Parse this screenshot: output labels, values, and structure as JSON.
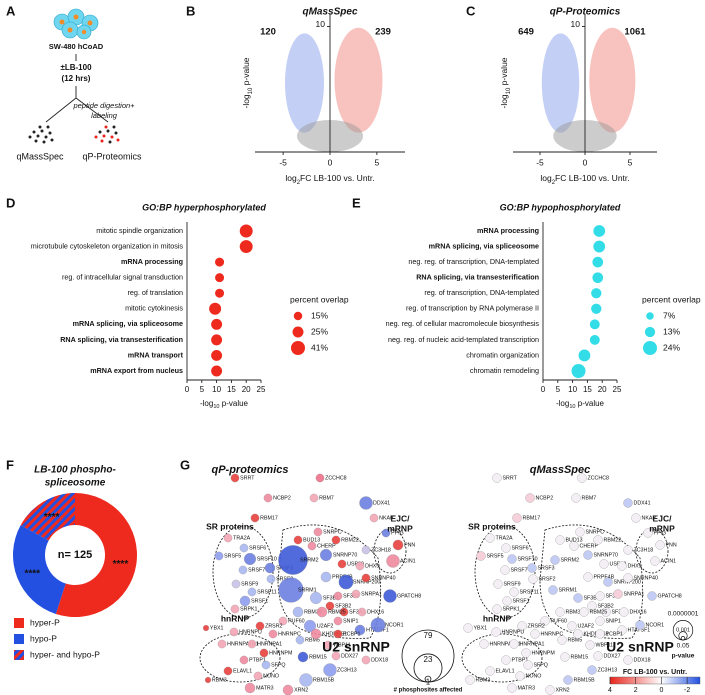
{
  "panel_labels": [
    "A",
    "B",
    "C",
    "D",
    "E",
    "F",
    "G"
  ],
  "panel_a": {
    "cells": "SW-480 hCoAD",
    "treatment": "±LB-100",
    "duration": "(12 hrs)",
    "step_1": "peptide digestion+",
    "step_2": "labeling",
    "methods": [
      "qMassSpec",
      "qP-Proteomics"
    ]
  },
  "chart_data": [
    {
      "type": "volcano",
      "title": "qMassSpec",
      "x_label": [
        "log",
        "2",
        "FC LB-100 vs. Untr."
      ],
      "y_label": [
        "-log",
        "10",
        " p-value"
      ],
      "xlim": [
        -8,
        8
      ],
      "xticks": [
        -5,
        0,
        5
      ],
      "ylim": [
        0,
        11
      ],
      "yticks": [
        10
      ],
      "left_count": 120,
      "right_count": 239,
      "left_color": "#2ad4e8",
      "right_color": "#e8241c",
      "down_color": "#7d95e8",
      "up_color": "#f07a70"
    },
    {
      "type": "volcano",
      "title": "qP-Proteomics",
      "x_label": [
        "log",
        "2",
        "FC LB-100 vs. Untr."
      ],
      "y_label": [
        "-log",
        "10",
        " p-value"
      ],
      "xlim": [
        -8,
        8
      ],
      "xticks": [
        -5,
        0,
        5
      ],
      "ylim": [
        0,
        11
      ],
      "yticks": [
        10
      ],
      "left_count": 649,
      "right_count": 1061,
      "left_color": "#2ad4e8",
      "right_color": "#e8241c",
      "down_color": "#7d95e8",
      "up_color": "#f07a70"
    },
    {
      "type": "dot",
      "title": "GO:BP hyperphosphorylated",
      "x_label": [
        "-log",
        "10",
        " p-value"
      ],
      "categories": [
        "mitotic spindle organization",
        "microtubule cytoskeleton organization in mitosis",
        "mRNA processing",
        "reg. of intracellular signal transduction",
        "reg. of translation",
        "mitotic cytokinesis",
        "mRNA splicing, via spliceosome",
        "RNA splicing, via transesterification",
        "mRNA transport",
        "mRNA export from nucleus"
      ],
      "label_colors": [
        "#000000",
        "#000000",
        "#e8241c",
        "#000000",
        "#000000",
        "#000000",
        "#e8241c",
        "#e8241c",
        "#e8241c",
        "#e8241c"
      ],
      "values": [
        20,
        20,
        11,
        11,
        11,
        9.5,
        10,
        10,
        10,
        10
      ],
      "sizes": [
        35,
        35,
        17,
        17,
        17,
        30,
        25,
        25,
        25,
        25
      ],
      "color": "#ee2a1e",
      "xlim": [
        0,
        25
      ],
      "xticks": [
        0,
        5,
        10,
        15,
        20,
        25
      ],
      "size_legend_title": "percent overlap",
      "size_legend": [
        {
          "value": 15,
          "label": "15%"
        },
        {
          "value": 25,
          "label": "25%"
        },
        {
          "value": 41,
          "label": "41%"
        }
      ]
    },
    {
      "type": "dot",
      "title": "GO:BP hypophosphorylated",
      "x_label": [
        "-log",
        "10",
        " p-value"
      ],
      "categories": [
        "mRNA processing",
        "mRNA splicing, via spliceosome",
        "neg. reg. of transcription, DNA-templated",
        "RNA splicing, via transesterification",
        "reg. of transcription, DNA-templated",
        "reg. of transcription by RNA polymerase II",
        "neg. reg. of cellular macromolecule biosynthesis",
        "neg. reg. of nucleic acid-templated transcription",
        "chromatin organization",
        "chromatin remodeling"
      ],
      "label_colors": [
        "#2ad4e8",
        "#2ad4e8",
        "#000000",
        "#2ad4e8",
        "#000000",
        "#000000",
        "#000000",
        "#000000",
        "#000000",
        "#000000"
      ],
      "values": [
        19,
        19,
        18.5,
        18.5,
        18,
        18,
        17.5,
        17.5,
        14,
        12
      ],
      "sizes": [
        17,
        17,
        14,
        14,
        13,
        13,
        12,
        12,
        17,
        24
      ],
      "color": "#33dde8",
      "xlim": [
        0,
        25
      ],
      "xticks": [
        0,
        5,
        10,
        15,
        20,
        25
      ],
      "size_legend_title": "percent overlap",
      "size_legend": [
        {
          "value": 7,
          "label": "7%"
        },
        {
          "value": 13,
          "label": "13%"
        },
        {
          "value": 24,
          "label": "24%"
        }
      ]
    },
    {
      "type": "donut",
      "title": [
        "LB-100 phospho-",
        "spliceosome"
      ],
      "center_label": "n= 125",
      "series": [
        {
          "name": "hyper-P",
          "color": "#ee2a1e",
          "value": 55,
          "label": "****"
        },
        {
          "name": "hypo-P",
          "color": "#2350e0",
          "value": 28,
          "label": "****"
        },
        {
          "name": "hyper- and hypo-P",
          "color": "#2350e0",
          "hatch_color": "#ee2a1e",
          "value": 17,
          "label": "****"
        }
      ]
    }
  ],
  "networks": {
    "nodes": [
      "SRRT",
      "ZCCHC8",
      "NCBP2",
      "RBM7",
      "DDX41",
      "NKAP",
      "PPIG",
      "PNN",
      "ACIN1",
      "ZC3H18",
      "RBM17",
      "TRA2A",
      "SRSF6",
      "SRSF5",
      "SRSF10",
      "SRSF3",
      "SRSF7",
      "SRSF2",
      "SRSF9",
      "SRSF11",
      "SRSF1",
      "SRPK1",
      "SRRM2",
      "SRRM1",
      "BUD13",
      "SNRPC",
      "CHERP",
      "RBM22",
      "SNRNP70",
      "USP39",
      "DHX9",
      "PRPF4B",
      "SNRNP200",
      "SNRNP40",
      "SF3B1",
      "SF3B3",
      "SF3B2",
      "SNRPA1",
      "SF3A1",
      "SNIP1",
      "DHX16",
      "HTATSF1",
      "RBM39",
      "RBM25",
      "PUF60",
      "U2AF2",
      "GPATCH8",
      "NCOR1",
      "ZRSR2",
      "RBM5",
      "YBX1",
      "HNRNPU",
      "HNRNPC",
      "KHDRBS1",
      "HNRNPA1B1",
      "HNRNPA1",
      "HNRNPM",
      "PTBP1",
      "ELAVL1",
      "RBM3",
      "SFPQ",
      "NONO",
      "MATR3",
      "XRN2",
      "RBM15",
      "RBM15B",
      "ZC3H13",
      "PCBP1",
      "WBP11",
      "DDX27",
      "DDX18"
    ],
    "group_labels": [
      "SR proteins",
      "EJC/",
      "mRNP",
      "hnRNP",
      "U2 snRNP"
    ],
    "proteomics": {
      "title": "qP-proteomics",
      "colors": [
        "#e8413c",
        "#ef6f8a",
        "#f08aa0",
        "#f4a6b5",
        "#6c80e0",
        "#f4a6b5",
        "#6c80e0",
        "#e8413c",
        "#f08aa0",
        "#c9c2e6",
        "#e8413c",
        "#f4a6b5",
        "#a9b8f0",
        "#8e9ef0",
        "#6c80e0",
        "#6c80e0",
        "#a9b8f0",
        "#a9b8f0",
        "#c9c2e6",
        "#a9b8f0",
        "#8e9ef0",
        "#f4a6b5",
        "#3f5bd9",
        "#6c80e0",
        "#e8413c",
        "#f08aa0",
        "#f08aa0",
        "#e8413c",
        "#6c80e0",
        "#e8413c",
        "#f4a6b5",
        "#a9b8f0",
        "#3f5bd9",
        "#e8413c",
        "#a9b8f0",
        "#f08aa0",
        "#e8413c",
        "#f4a6b5",
        "#e8413c",
        "#f08aa0",
        "#f4a6b5",
        "#6c80e0",
        "#a9b8f0",
        "#f08aa0",
        "#f4a6b5",
        "#8e9ef0",
        "#3f5bd9",
        "#6c80e0",
        "#e8413c",
        "#a9b8f0",
        "#e8413c",
        "#f4a6b5",
        "#f08aa0",
        "#f08aa0",
        "#f4a6b5",
        "#f4a6b5",
        "#e8413c",
        "#f08aa0",
        "#e8413c",
        "#e8413c",
        "#a9b8f0",
        "#f4a6b5",
        "#f08aa0",
        "#f08aa0",
        "#3f5bd9",
        "#a9b8f0",
        "#8e9ef0",
        "#e8413c",
        "#f4a6b5",
        "#f4a6b5",
        "#f4a6b5"
      ],
      "phosphosites": [
        2,
        2,
        2,
        2,
        5,
        2,
        2,
        3,
        5,
        2,
        2,
        2,
        2,
        2,
        4,
        3,
        2,
        2,
        2,
        2,
        3,
        2,
        25,
        18,
        2,
        2,
        2,
        2,
        4,
        2,
        2,
        3,
        6,
        2,
        4,
        2,
        2,
        2,
        2,
        2,
        2,
        3,
        3,
        3,
        2,
        4,
        5,
        6,
        2,
        2,
        1,
        2,
        2,
        3,
        2,
        2,
        2,
        2,
        2,
        1,
        2,
        2,
        3,
        3,
        3,
        5,
        5,
        2,
        2,
        2,
        2
      ],
      "size_legend": [
        79,
        23,
        1
      ],
      "size_legend_title": "# phosphosites affected"
    },
    "massspec": {
      "title": "qMassSpec",
      "colors": [
        "#f3eff5",
        "#f3eff5",
        "#f6d0da",
        "#f3eff5",
        "#c3ccf4",
        "#f3eff5",
        "#f3eff5",
        "#f3eff5",
        "#f3eff5",
        "#f3eff5",
        "#f6d0da",
        "#f3eff5",
        "#f3eff5",
        "#f6d0da",
        "#c3ccf4",
        "#c3ccf4",
        "#f3eff5",
        "#f3eff5",
        "#f3eff5",
        "#f3eff5",
        "#f3eff5",
        "#f3eff5",
        "#c3ccf4",
        "#c3ccf4",
        "#f3eff5",
        "#f3eff5",
        "#f3eff5",
        "#f3eff5",
        "#c3ccf4",
        "#f3eff5",
        "#f3eff5",
        "#f3eff5",
        "#c3ccf4",
        "#f3eff5",
        "#c3ccf4",
        "#f3eff5",
        "#f3eff5",
        "#f6d0da",
        "#f3eff5",
        "#f3eff5",
        "#f3eff5",
        "#f3eff5",
        "#f3eff5",
        "#f3eff5",
        "#f3eff5",
        "#f3eff5",
        "#c3ccf4",
        "#c3ccf4",
        "#f3eff5",
        "#f3eff5",
        "#f3eff5",
        "#f3eff5",
        "#f3eff5",
        "#f3eff5",
        "#f3eff5",
        "#f3eff5",
        "#f3eff5",
        "#f3eff5",
        "#f3eff5",
        "#f3eff5",
        "#f3eff5",
        "#f3eff5",
        "#f3eff5",
        "#f3eff5",
        "#f3eff5",
        "#c3ccf4",
        "#c3ccf4",
        "#f3eff5",
        "#f3eff5",
        "#f3eff5",
        "#f3eff5"
      ],
      "pvalue_legend": [
        {
          "value": 1e-07,
          "label": "0.0000001"
        },
        0.001,
        0.05
      ],
      "pvalue_legend_title": "p-value",
      "colorbar": {
        "label": "FC LB-100 vs. Untr.",
        "lim": [
          4,
          -3
        ],
        "ticks": [
          4,
          2,
          0,
          -2
        ],
        "stops": [
          {
            "value": 4,
            "color": "#e8241c"
          },
          {
            "value": 0,
            "color": "#ffffff"
          },
          {
            "value": -3,
            "color": "#2350e0"
          }
        ]
      }
    }
  }
}
